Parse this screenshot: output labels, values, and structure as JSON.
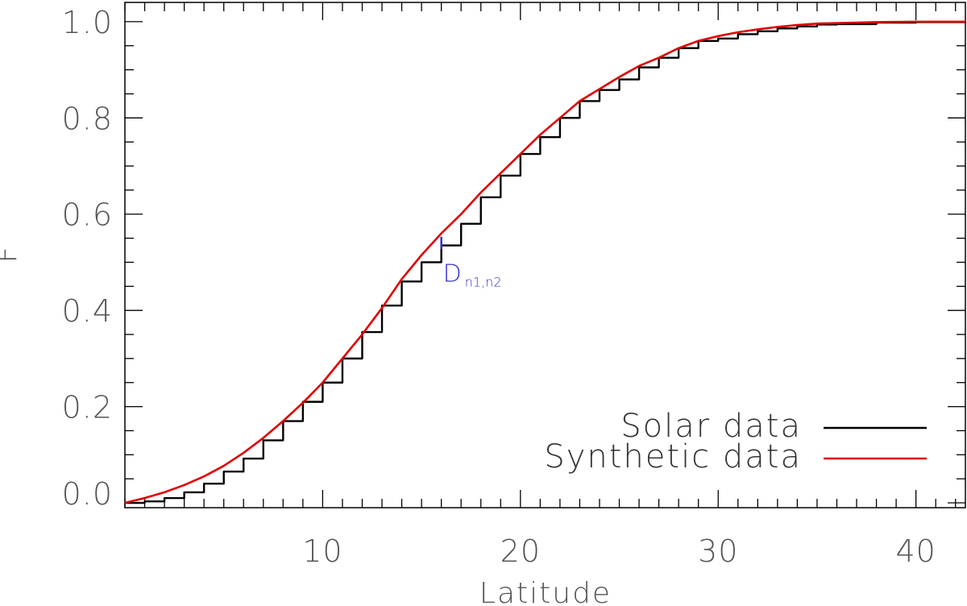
{
  "chart_data": {
    "type": "line",
    "title": "",
    "xlabel": "Latitude",
    "ylabel": "F",
    "xlim": [
      0,
      42.5
    ],
    "ylim": [
      -0.01,
      1.04
    ],
    "x_ticks": [
      10,
      20,
      30,
      40
    ],
    "y_ticks": [
      0.0,
      0.2,
      0.4,
      0.6,
      0.8,
      1.0
    ],
    "x_tick_labels": [
      "10",
      "20",
      "30",
      "40"
    ],
    "y_tick_labels": [
      "0.0",
      "0.2",
      "0.4",
      "0.6",
      "0.8",
      "1.0"
    ],
    "x_minor_step": 1,
    "y_minor_step": 0.05,
    "grid": false,
    "legend_position": "bottom-right",
    "series": [
      {
        "name": "Solar data",
        "style": "step",
        "color": "#000000",
        "x": [
          0,
          1,
          2,
          3,
          4,
          5,
          6,
          7,
          8,
          9,
          10,
          11,
          12,
          13,
          14,
          15,
          16,
          17,
          18,
          19,
          20,
          21,
          22,
          23,
          24,
          25,
          26,
          27,
          28,
          29,
          30,
          31,
          32,
          33,
          34,
          35,
          36,
          38,
          40,
          42.5
        ],
        "y": [
          0.0,
          0.003,
          0.01,
          0.022,
          0.04,
          0.065,
          0.092,
          0.13,
          0.17,
          0.21,
          0.25,
          0.3,
          0.355,
          0.41,
          0.46,
          0.5,
          0.535,
          0.58,
          0.635,
          0.68,
          0.725,
          0.76,
          0.8,
          0.835,
          0.858,
          0.88,
          0.905,
          0.925,
          0.945,
          0.96,
          0.965,
          0.974,
          0.98,
          0.986,
          0.99,
          0.994,
          0.995,
          0.998,
          0.999,
          1.0
        ]
      },
      {
        "name": "Synthetic data",
        "style": "line",
        "color": "#e00000",
        "x": [
          0,
          1,
          2,
          3,
          4,
          5,
          6,
          7,
          8,
          9,
          10,
          11,
          12,
          13,
          14,
          15,
          16,
          17,
          18,
          19,
          20,
          21,
          22,
          23,
          24,
          25,
          26,
          27,
          28,
          29,
          30,
          31,
          32,
          33,
          34,
          35,
          36,
          38,
          40,
          42.5
        ],
        "y": [
          0.0,
          0.01,
          0.022,
          0.037,
          0.055,
          0.077,
          0.104,
          0.135,
          0.17,
          0.208,
          0.25,
          0.3,
          0.35,
          0.405,
          0.465,
          0.515,
          0.56,
          0.6,
          0.645,
          0.685,
          0.725,
          0.765,
          0.8,
          0.835,
          0.86,
          0.885,
          0.908,
          0.925,
          0.945,
          0.96,
          0.97,
          0.978,
          0.984,
          0.989,
          0.993,
          0.996,
          0.997,
          0.999,
          1.0,
          1.0
        ]
      }
    ],
    "annotation": {
      "text_main": "D",
      "text_sub": "n1,n2",
      "color": "#3333cc",
      "x": 16,
      "y_from": 0.527,
      "y_to": 0.553
    }
  }
}
